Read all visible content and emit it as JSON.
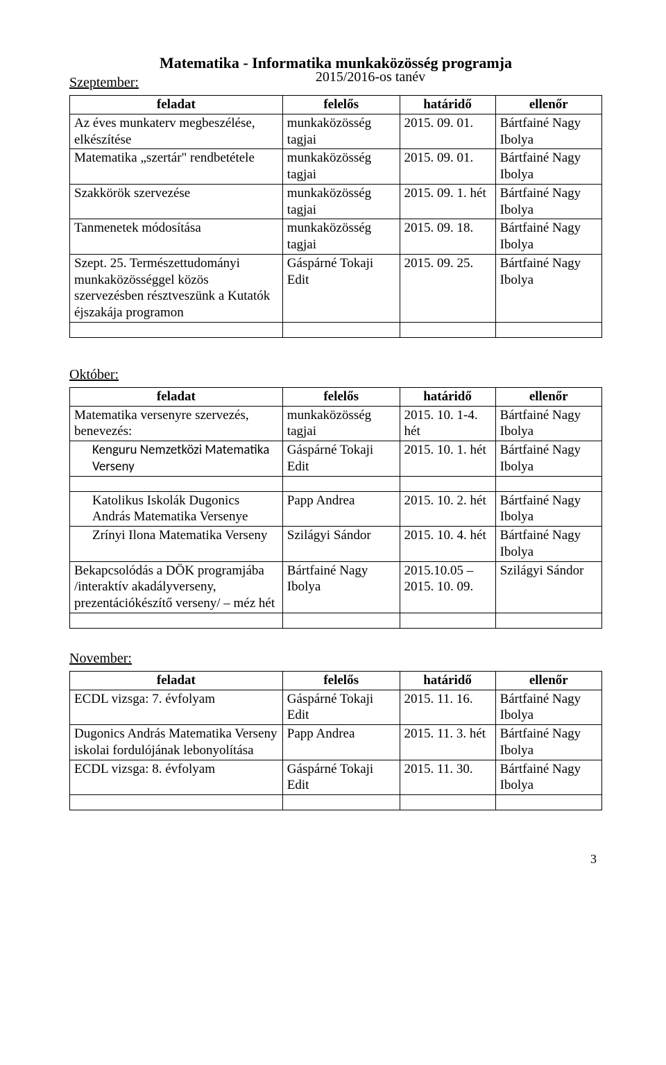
{
  "doc": {
    "title": "Matematika - Informatika munkaközösség programja",
    "subtitle": "2015/2016-os tanév",
    "page_number": "3"
  },
  "headers": {
    "feladat": "feladat",
    "felelos": "felelős",
    "hatarido": "határidő",
    "ellenor": "ellenőr"
  },
  "sections": {
    "september": {
      "title": "Szeptember:",
      "rows": {
        "r0": {
          "feladat": "Az éves munkaterv megbeszélése, elkészítése",
          "felelos": "munkaközösség tagjai",
          "hatarido": "2015. 09. 01.",
          "ellenor": "Bártfainé Nagy Ibolya"
        },
        "r1": {
          "feladat": "Matematika „szertár\" rendbetétele",
          "felelos": "munkaközösség tagjai",
          "hatarido": "2015. 09. 01.",
          "ellenor": "Bártfainé Nagy Ibolya"
        },
        "r2": {
          "feladat": "Szakkörök szervezése",
          "felelos": "munkaközösség tagjai",
          "hatarido": "2015. 09. 1. hét",
          "ellenor": "Bártfainé Nagy Ibolya"
        },
        "r3": {
          "feladat": "Tanmenetek módosítása",
          "felelos": "munkaközösség tagjai",
          "hatarido": "2015. 09. 18.",
          "ellenor": "Bártfainé Nagy Ibolya"
        },
        "r4": {
          "feladat": "Szept. 25. Természettudományi munkaközösséggel közös szervezésben résztveszünk a Kutatók éjszakája programon",
          "felelos": "Gáspárné Tokaji Edit",
          "hatarido": "2015. 09. 25.",
          "ellenor": "Bártfainé Nagy Ibolya"
        }
      }
    },
    "october": {
      "title": "Október:",
      "rows": {
        "r0": {
          "feladat": "Matematika versenyre szervezés, benevezés:",
          "felelos": "munkaközösség tagjai",
          "hatarido": "2015. 10. 1-4. hét",
          "ellenor": "Bártfainé Nagy Ibolya"
        },
        "r1": {
          "feladat": "Kenguru Nemzetközi Matematika Verseny",
          "felelos": "Gáspárné Tokaji Edit",
          "hatarido": "2015. 10. 1. hét",
          "ellenor": "Bártfainé Nagy Ibolya"
        },
        "r2": {
          "feladat": "Katolikus Iskolák Dugonics András Matematika Versenye",
          "felelos": "Papp Andrea",
          "hatarido": "2015. 10. 2. hét",
          "ellenor": "Bártfainé Nagy Ibolya"
        },
        "r3": {
          "feladat": "Zrínyi Ilona Matematika Verseny",
          "felelos": "Szilágyi Sándor",
          "hatarido": "2015. 10. 4. hét",
          "ellenor": "Bártfainé Nagy Ibolya"
        },
        "r4": {
          "feladat": "Bekapcsolódás a DÖK programjába /interaktív akadályverseny, prezentációkészítő verseny/ – méz hét",
          "felelos": "Bártfainé Nagy Ibolya",
          "hatarido": "2015.10.05 – 2015. 10. 09.",
          "ellenor": "Szilágyi Sándor"
        }
      }
    },
    "november": {
      "title": "November:",
      "rows": {
        "r0": {
          "feladat": "ECDL vizsga: 7. évfolyam",
          "felelos": "Gáspárné Tokaji Edit",
          "hatarido": "2015. 11. 16.",
          "ellenor": "Bártfainé Nagy Ibolya"
        },
        "r1": {
          "feladat": "Dugonics András Matematika Verseny iskolai fordulójának lebonyolítása",
          "felelos": "Papp Andrea",
          "hatarido": "2015. 11. 3. hét",
          "ellenor": "Bártfainé Nagy Ibolya"
        },
        "r2": {
          "feladat": "ECDL vizsga: 8. évfolyam",
          "felelos": "Gáspárné Tokaji Edit",
          "hatarido": "2015. 11. 30.",
          "ellenor": "Bártfainé Nagy Ibolya"
        }
      }
    }
  }
}
